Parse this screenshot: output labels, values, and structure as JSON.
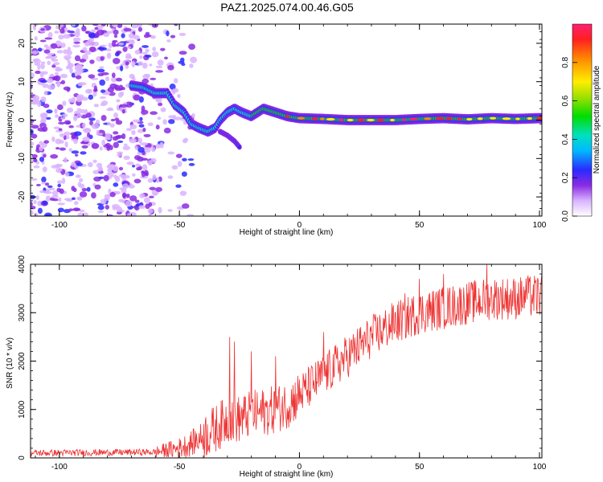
{
  "title": "PAZ1.2025.074.00.46.G05",
  "chart_data": [
    {
      "type": "heatmap",
      "title": "PAZ1.2025.074.00.46.G05",
      "xlabel": "Height of straight line (km)",
      "ylabel": "Frequency (Hz)",
      "xlim": [
        -112,
        101
      ],
      "ylim": [
        -25,
        25
      ],
      "xticks": [
        -100,
        -50,
        0,
        50,
        100
      ],
      "yticks": [
        -20,
        -10,
        0,
        10,
        20
      ],
      "colorbar": {
        "label": "Normalized spectral amplitude",
        "range": [
          0,
          1
        ],
        "ticks": [
          "0.0",
          "0.2",
          "0.4",
          "0.6",
          "0.8"
        ]
      },
      "ridge": {
        "x": [
          -70,
          -65,
          -60,
          -55,
          -52,
          -48,
          -45,
          -42,
          -38,
          -35,
          -33,
          -30,
          -27,
          -24,
          -20,
          -15,
          -10,
          -5,
          0,
          10,
          20,
          30,
          40,
          50,
          60,
          70,
          80,
          90,
          100
        ],
        "y": [
          9,
          8.5,
          7,
          7,
          4,
          2,
          -1,
          -2,
          -3,
          -2,
          0,
          2,
          3,
          2,
          1,
          3,
          2,
          1,
          0.5,
          0.3,
          0,
          0,
          0,
          0.3,
          0.5,
          0.2,
          0.5,
          0.3,
          0.5
        ]
      },
      "branch": {
        "x": [
          -33,
          -30,
          -27,
          -25
        ],
        "y": [
          -3,
          -4,
          -5.5,
          -7
        ]
      },
      "noise_region_x": [
        -112,
        -52
      ]
    },
    {
      "type": "line",
      "xlabel": "Height of straight line (km)",
      "ylabel": "SNR (10 * v/v)",
      "xlim": [
        -112,
        101
      ],
      "ylim": [
        0,
        4000
      ],
      "xticks": [
        -100,
        -50,
        0,
        50,
        100
      ],
      "yticks": [
        0,
        1000,
        2000,
        3000,
        4000
      ],
      "color": "#ee3333",
      "trend": {
        "x": [
          -112,
          -60,
          -50,
          -45,
          -40,
          -35,
          -30,
          -25,
          -20,
          -15,
          -10,
          -5,
          0,
          10,
          20,
          30,
          40,
          50,
          60,
          70,
          80,
          90,
          100
        ],
        "y": [
          100,
          120,
          200,
          300,
          450,
          600,
          800,
          800,
          900,
          950,
          1000,
          1100,
          1300,
          1700,
          2100,
          2500,
          2800,
          3000,
          3100,
          3200,
          3300,
          3300,
          3350
        ]
      },
      "spikes": {
        "x": [
          -29,
          -27,
          -20,
          -10,
          10,
          44,
          50,
          60,
          78,
          95
        ],
        "y": [
          2500,
          2400,
          2200,
          2100,
          2600,
          3400,
          3700,
          3800,
          4000,
          3700
        ]
      }
    }
  ]
}
